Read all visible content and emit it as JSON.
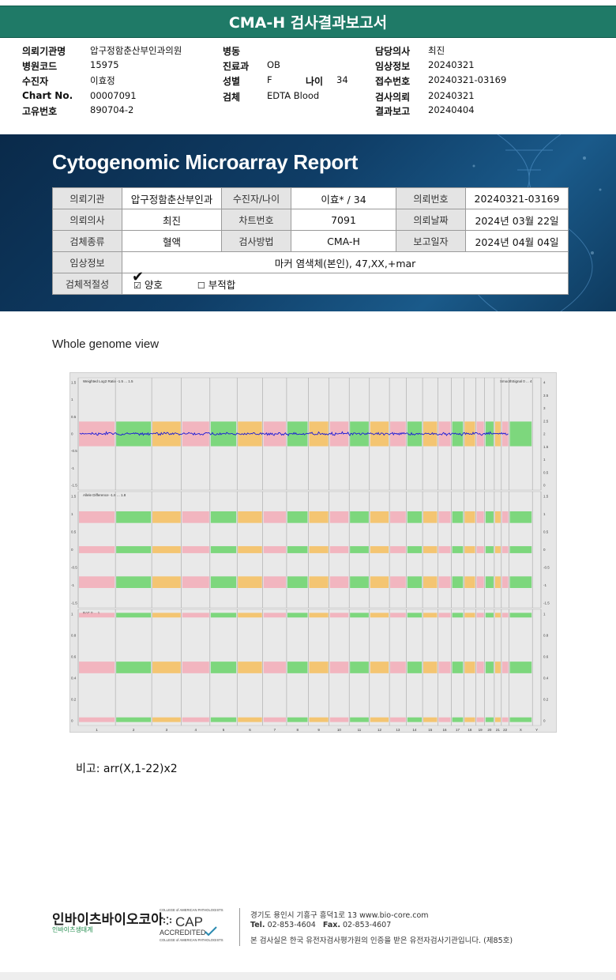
{
  "title": "CMA-H 검사결과보고서",
  "info": {
    "hospital_label": "의뢰기관명",
    "hospital": "압구정함춘산부인과의원",
    "ward_label": "병동",
    "ward": "",
    "doctor_label": "담당의사",
    "doctor": "최진",
    "code_label": "병원코드",
    "code": "15975",
    "dept_label": "진료과",
    "dept": "OB",
    "clinical_label": "임상정보",
    "clinical": "20240321",
    "patient_label": "수진자",
    "patient": "이효정",
    "sex_label": "성별",
    "sex": "F",
    "age_label": "나이",
    "age": "34",
    "receipt_label": "접수번호",
    "receipt": "20240321-03169",
    "chart_label": "Chart No.",
    "chart": "00007091",
    "specimen_label": "검체",
    "specimen": "EDTA Blood",
    "request_label": "검사의뢰",
    "request": "20240321",
    "uid_label": "고유번호",
    "uid": "890704-2",
    "result_label": "결과보고",
    "result": "20240404"
  },
  "report": {
    "title": "Cytogenomic Microarray Report",
    "r1": [
      "의뢰기관",
      "압구정함춘산부인과",
      "수진자/나이",
      "이효* / 34",
      "의뢰번호",
      "20240321-03169"
    ],
    "r2": [
      "의뢰의사",
      "최진",
      "차트번호",
      "7091",
      "의뢰날짜",
      "2024년 03월 22일"
    ],
    "r3": [
      "검체종류",
      "혈액",
      "검사방법",
      "CMA-H",
      "보고일자",
      "2024년 04월 04일"
    ],
    "r4_label": "임상정보",
    "r4_value": "마커 염색체(본인), 47,XX,+mar",
    "r5_label": "검체적절성",
    "good": "양호",
    "bad": "부적합"
  },
  "section_title": "Whole genome view",
  "chart_data": {
    "type": "scatter",
    "title": "",
    "panels": [
      {
        "name": "Weighted Log2 Ratio -1.5 ... 1.5",
        "right_name": "SmoothSignal 0 ... 4",
        "ylim": [
          -1.5,
          1.5
        ],
        "ticks_left": [
          "1.5",
          "1",
          "0.5",
          "0",
          "-0.5",
          "-1",
          "-1.5"
        ],
        "ticks_right": [
          "4",
          "3.5",
          "3",
          "2.5",
          "2",
          "1.5",
          "1",
          "0.5",
          "0"
        ]
      },
      {
        "name": "Allele Difference -1.8 ... 1.8",
        "ylim": [
          -1.8,
          1.8
        ],
        "ticks_left": [
          "1.5",
          "1",
          "0.5",
          "0",
          "-0.5",
          "-1",
          "-1.5"
        ],
        "ticks_right": [
          "1.5",
          "1",
          "0.5",
          "0",
          "-0.5",
          "-1",
          "-1.5"
        ]
      },
      {
        "name": "BAF 0 ... 1",
        "ylim": [
          0,
          1
        ],
        "ticks_left": [
          "1",
          "0.8",
          "0.6",
          "0.4",
          "0.2",
          "0"
        ],
        "ticks_right": [
          "1",
          "0.8",
          "0.6",
          "0.4",
          "0.2",
          "0"
        ]
      }
    ],
    "chromosomes": [
      "1",
      "2",
      "3",
      "4",
      "5",
      "6",
      "7",
      "8",
      "9",
      "10",
      "11",
      "12",
      "13",
      "14",
      "15",
      "16",
      "17",
      "18",
      "19",
      "20",
      "21",
      "22",
      "X",
      "Y"
    ],
    "x_labels": [
      "1",
      "2",
      "3",
      "4",
      "5",
      "6",
      "7",
      "8",
      "9",
      "10",
      "11",
      "12",
      "13",
      "14",
      "15",
      "16",
      "17",
      "18",
      "19",
      "20",
      "21",
      "22",
      "X",
      "Y"
    ],
    "chrom_colors": [
      "#f4a3b0",
      "#58d058",
      "#f7b84a"
    ],
    "smooth_signal_color": "#1a1ad8"
  },
  "remark": "비고: arr(X,1-22)x2",
  "footer": {
    "company": "인바이츠바이오코아",
    "company_sub": "인바이츠생태계",
    "cap_top": "COLLEGE of AMERICAN PATHOLOGISTS",
    "cap_main": "CAP",
    "cap_acc": "ACCREDITED",
    "cap_bottom": "COLLEGE of AMERICAN PATHOLOGISTS",
    "address": "경기도 용인시 기흥구 흥덕1로 13    www.bio-core.com",
    "tel_label": "Tel.",
    "tel": "02-853-4604",
    "fax_label": "Fax.",
    "fax": "02-853-4607",
    "cert": "본 검사실은 한국 유전자검사평가원의 인증을 받은 유전자검사기관입니다. (제85호)"
  }
}
